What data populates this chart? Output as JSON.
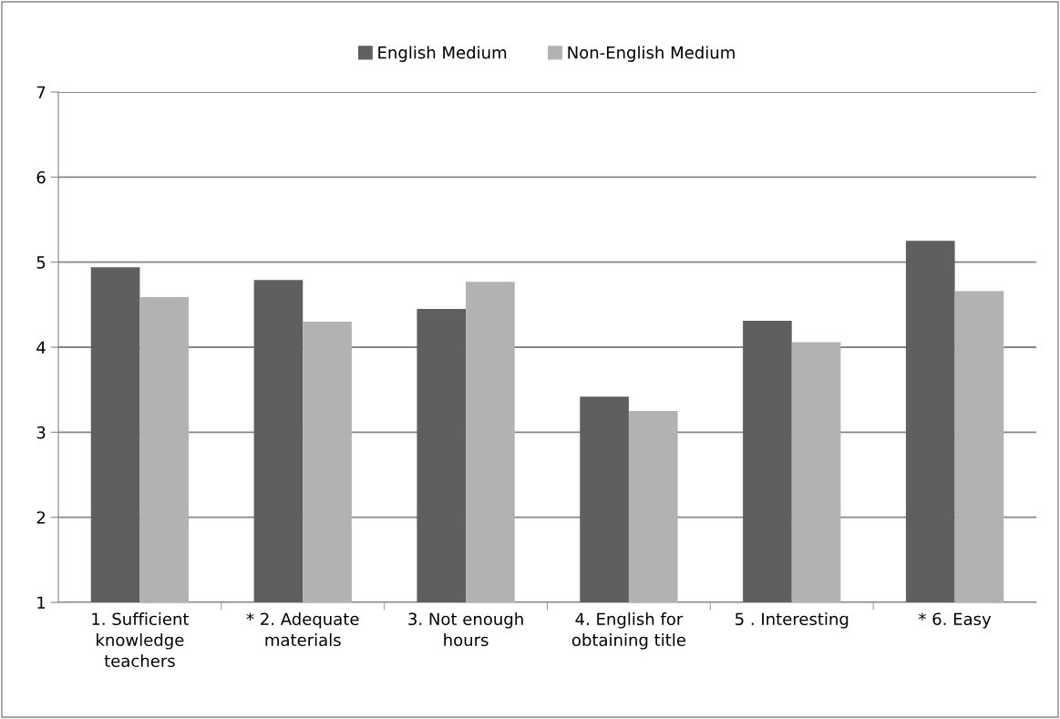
{
  "chart_data": {
    "type": "bar",
    "categories": [
      "1. Sufficient knowledge teachers",
      "* 2. Adequate materials",
      "3. Not enough hours",
      "4. English for obtaining title",
      "5 . Interesting",
      "* 6. Easy"
    ],
    "series": [
      {
        "name": "English Medium",
        "color": "#5f5f5f",
        "values": [
          4.94,
          4.79,
          4.45,
          3.42,
          4.31,
          5.25
        ]
      },
      {
        "name": "Non-English Medium",
        "color": "#b2b2b2",
        "values": [
          4.59,
          4.3,
          4.77,
          3.25,
          4.06,
          4.66
        ]
      }
    ],
    "ylim": [
      1,
      7
    ],
    "yticks": [
      1,
      2,
      3,
      4,
      5,
      6,
      7
    ],
    "grid": "y",
    "legend": "top"
  }
}
